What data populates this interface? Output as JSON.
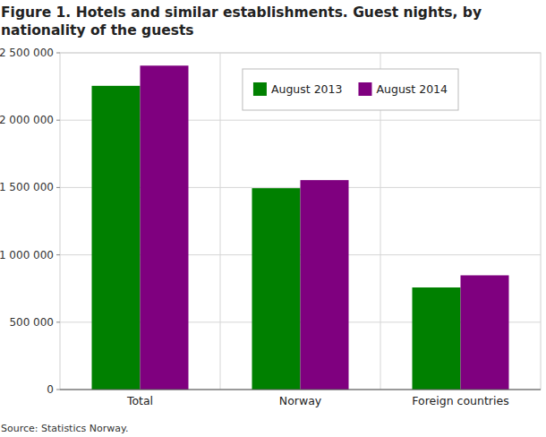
{
  "chart_data": {
    "type": "bar",
    "title": "Figure 1. Hotels and similar establishments. Guest nights, by nationality of the guests",
    "source": "Source: Statistics Norway.",
    "categories": [
      "Total",
      "Norway",
      "Foreign countries"
    ],
    "series": [
      {
        "name": "August 2013",
        "color": "#008000",
        "values": [
          2255000,
          1495000,
          758000
        ]
      },
      {
        "name": "August 2014",
        "color": "#7f007f",
        "values": [
          2405000,
          1555000,
          848000
        ]
      }
    ],
    "ylim": [
      0,
      2500000
    ],
    "yticks": [
      0,
      {
        "value": 500000,
        "label": "500 000"
      },
      {
        "value": 1000000,
        "label": "1 000 000"
      },
      {
        "value": 1500000,
        "label": "1 500 000"
      },
      {
        "value": 2000000,
        "label": "2 000 000"
      },
      {
        "value": 2500000,
        "label": "2 500 000"
      }
    ],
    "grid": true,
    "legend": "top-right"
  }
}
